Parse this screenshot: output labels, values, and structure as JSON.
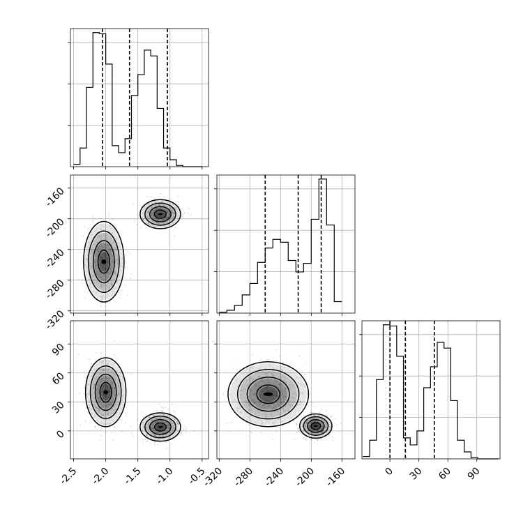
{
  "chart_data": {
    "type": "corner",
    "grid": true,
    "quantile_style": "dashed vertical lines",
    "parameters": [
      {
        "range": [
          -2.55,
          -0.4
        ],
        "ticks": [
          -2.5,
          -2.0,
          -1.5,
          -1.0,
          -0.5
        ],
        "tick_labels": [
          "-2.5",
          "-2.0",
          "-1.5",
          "-1.0",
          "-0.5"
        ]
      },
      {
        "range": [
          -323,
          -143
        ],
        "ticks": [
          -320,
          -280,
          -240,
          -200,
          -160
        ],
        "tick_labels": [
          "-320",
          "-280",
          "-240",
          "-200",
          "-160"
        ]
      },
      {
        "range": [
          -29,
          114
        ],
        "ticks": [
          0,
          30,
          60,
          90
        ],
        "tick_labels": [
          "0",
          "30",
          "60",
          "90"
        ]
      }
    ],
    "histograms": [
      {
        "param": 0,
        "bins": [
          -2.5,
          -2.4,
          -2.3,
          -2.2,
          -2.1,
          -2.0,
          -1.9,
          -1.8,
          -1.7,
          -1.6,
          -1.5,
          -1.4,
          -1.3,
          -1.2,
          -1.1,
          -1.0,
          -0.9,
          -0.8,
          -0.7,
          -0.6,
          -0.5
        ],
        "counts": [
          2,
          16,
          68,
          115,
          114,
          88,
          18,
          12,
          24,
          61,
          79,
          100,
          95,
          50,
          16,
          6,
          1,
          0,
          0,
          0
        ],
        "quantiles": [
          -2.05,
          -1.63,
          -1.04
        ]
      },
      {
        "param": 1,
        "bins": [
          -320,
          -310,
          -300,
          -290,
          -280,
          -270,
          -260,
          -250,
          -240,
          -230,
          -220,
          -210,
          -200,
          -190,
          -180,
          -170,
          -160
        ],
        "counts": [
          1,
          3,
          8,
          19,
          31,
          53,
          68,
          77,
          74,
          55,
          43,
          52,
          98,
          140,
          92,
          12
        ],
        "quantiles": [
          -260,
          -217,
          -187
        ]
      },
      {
        "param": 2,
        "bins": [
          -28,
          -21,
          -14,
          -7,
          0,
          7,
          14,
          21,
          28,
          35,
          42,
          49,
          56,
          63,
          70,
          77,
          84,
          91,
          98,
          105,
          112
        ],
        "counts": [
          2,
          16,
          68,
          115,
          114,
          88,
          18,
          12,
          24,
          61,
          79,
          100,
          95,
          50,
          16,
          6,
          1,
          0,
          0,
          0
        ],
        "quantiles": [
          0,
          16,
          46
        ]
      }
    ],
    "scatter_panels": [
      {
        "x_param": 0,
        "y_param": 1,
        "clusters": [
          {
            "center": [
              -2.03,
              -256
            ],
            "spread": [
              0.15,
              25
            ],
            "share": 0.5
          },
          {
            "center": [
              -1.15,
              -194
            ],
            "spread": [
              0.15,
              9
            ],
            "share": 0.5
          }
        ]
      },
      {
        "x_param": 0,
        "y_param": 2,
        "clusters": [
          {
            "center": [
              -2.0,
              40
            ],
            "spread": [
              0.15,
              17
            ],
            "share": 0.5
          },
          {
            "center": [
              -1.15,
              4
            ],
            "spread": [
              0.15,
              7
            ],
            "share": 0.5
          }
        ]
      },
      {
        "x_param": 1,
        "y_param": 2,
        "clusters": [
          {
            "center": [
              -256,
              38
            ],
            "spread": [
              25,
              16
            ],
            "share": 0.5
          },
          {
            "center": [
              -194,
              5
            ],
            "spread": [
              10,
              6
            ],
            "share": 0.5
          }
        ]
      }
    ]
  }
}
